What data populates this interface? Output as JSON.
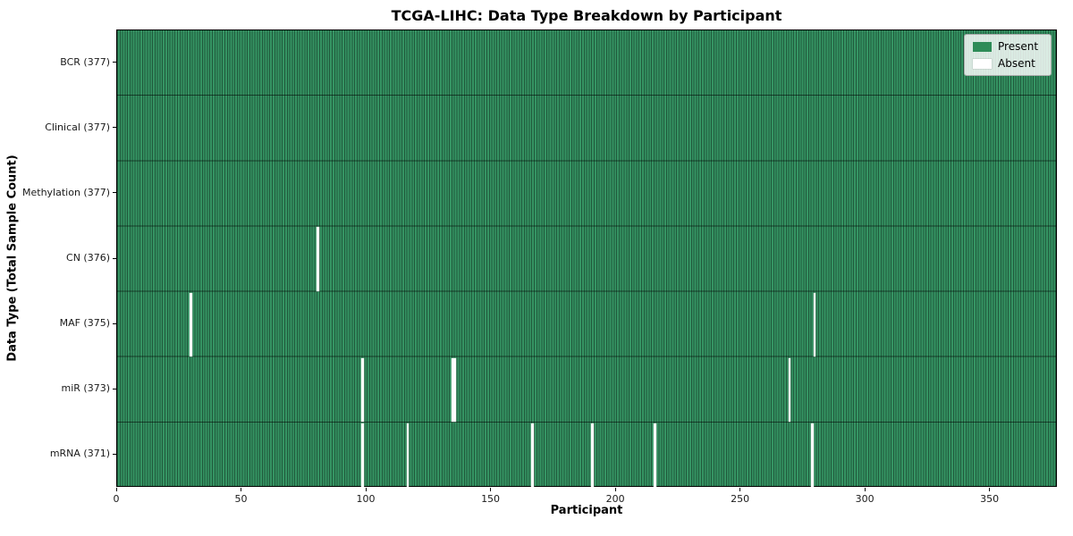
{
  "chart_data": {
    "type": "heatmap",
    "title": "TCGA-LIHC: Data Type Breakdown by Participant",
    "xlabel": "Participant",
    "ylabel": "Data Type (Total Sample Count)",
    "x_ticks": [
      0,
      50,
      100,
      150,
      200,
      250,
      300,
      350
    ],
    "x_range": [
      0,
      377
    ],
    "n_participants": 377,
    "y_tick_label_format": "{label} ({total})",
    "rows": [
      {
        "label": "BCR",
        "total": 377,
        "absent_participants": []
      },
      {
        "label": "Clinical",
        "total": 377,
        "absent_participants": []
      },
      {
        "label": "Methylation",
        "total": 377,
        "absent_participants": []
      },
      {
        "label": "CN",
        "total": 376,
        "absent_participants": [
          80
        ]
      },
      {
        "label": "MAF",
        "total": 375,
        "absent_participants": [
          29,
          279
        ]
      },
      {
        "label": "miR",
        "total": 373,
        "absent_participants": [
          98,
          134,
          135,
          269
        ]
      },
      {
        "label": "mRNA",
        "total": 371,
        "absent_participants": [
          98,
          116,
          166,
          190,
          215,
          278
        ]
      }
    ],
    "legend": {
      "position": "upper right",
      "entries": [
        {
          "label": "Present",
          "color": "#2e8b57"
        },
        {
          "label": "Absent",
          "color": "#ffffff"
        }
      ]
    },
    "colors": {
      "present_fill": "#359463",
      "cell_edge": "rgba(0,0,0,0.40)",
      "row_divider": "rgba(0,0,0,0.55)",
      "absent_fill": "#fdfdfd",
      "spine": "#000000",
      "legend_background": "rgba(255,255,255,0.82)"
    }
  }
}
